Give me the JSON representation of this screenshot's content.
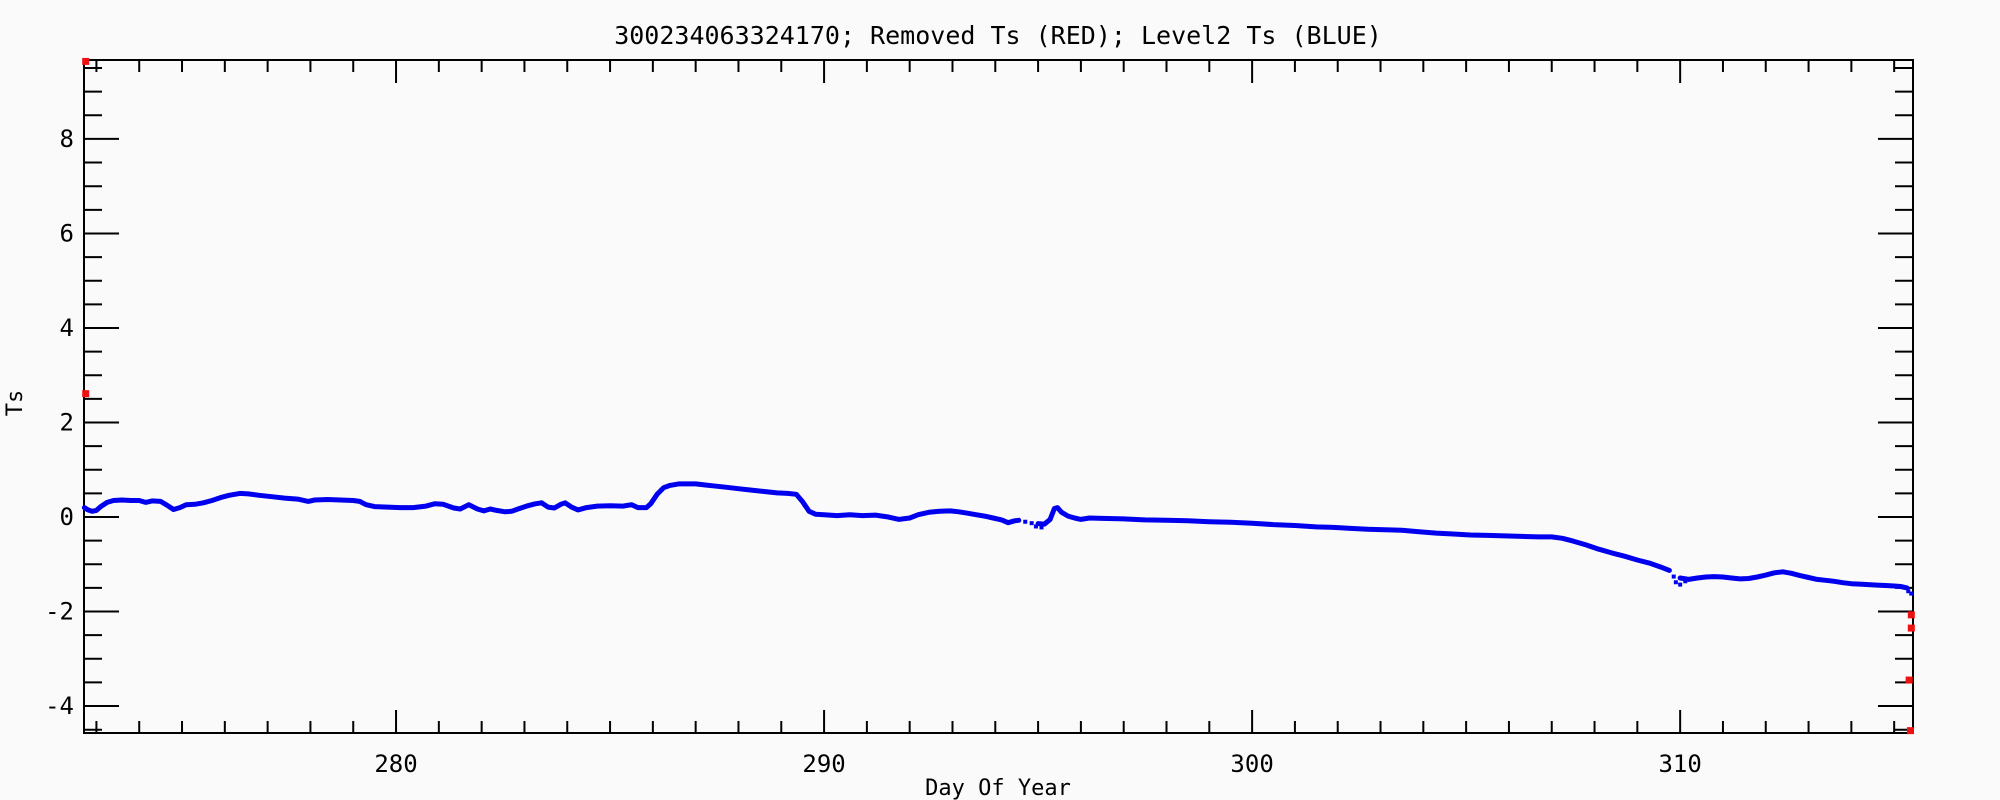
{
  "window": {
    "background": "#fafafa"
  },
  "chart_data": {
    "type": "scatter",
    "title": "300234063324170; Removed Ts (RED); Level2 Ts (BLUE)",
    "xlabel": "Day Of Year",
    "ylabel": "Ts",
    "xlim": [
      272.71,
      315.44
    ],
    "ylim": [
      -4.57,
      9.67
    ],
    "grid": false,
    "legend": "encoded-in-title",
    "axis_color": "#000000",
    "x_major_ticks": [
      280,
      290,
      300,
      310
    ],
    "x_tick_labels": [
      "280",
      "290",
      "300",
      "310"
    ],
    "x_minor_step": 1,
    "y_major_ticks": [
      -4,
      -2,
      0,
      2,
      4,
      6,
      8
    ],
    "y_tick_labels": [
      "-4",
      "-2",
      "0",
      "2",
      "4",
      "6",
      "8"
    ],
    "y_minor_step": 0.5,
    "series": [
      {
        "name": "Level2 Ts",
        "color": "#0000ee",
        "style": "dense-dot-line",
        "segments": [
          [
            [
              272.72,
              0.2
            ],
            [
              272.8,
              0.15
            ],
            [
              272.9,
              0.12
            ],
            [
              273.0,
              0.14
            ],
            [
              273.1,
              0.22
            ],
            [
              273.25,
              0.31
            ],
            [
              273.4,
              0.35
            ],
            [
              273.6,
              0.36
            ],
            [
              273.8,
              0.35
            ],
            [
              274.0,
              0.35
            ],
            [
              274.15,
              0.31
            ],
            [
              274.3,
              0.34
            ],
            [
              274.5,
              0.33
            ],
            [
              274.65,
              0.25
            ],
            [
              274.8,
              0.16
            ],
            [
              274.95,
              0.2
            ],
            [
              275.1,
              0.26
            ],
            [
              275.3,
              0.27
            ],
            [
              275.5,
              0.3
            ],
            [
              275.7,
              0.35
            ],
            [
              275.9,
              0.41
            ],
            [
              276.1,
              0.46
            ],
            [
              276.35,
              0.5
            ],
            [
              276.55,
              0.49
            ],
            [
              276.8,
              0.46
            ],
            [
              277.1,
              0.43
            ],
            [
              277.4,
              0.4
            ],
            [
              277.7,
              0.38
            ],
            [
              277.95,
              0.33
            ],
            [
              278.1,
              0.36
            ],
            [
              278.4,
              0.37
            ],
            [
              278.7,
              0.36
            ],
            [
              279.0,
              0.35
            ],
            [
              279.15,
              0.33
            ],
            [
              279.3,
              0.26
            ],
            [
              279.5,
              0.22
            ],
            [
              279.8,
              0.21
            ],
            [
              280.1,
              0.2
            ],
            [
              280.4,
              0.2
            ],
            [
              280.7,
              0.23
            ],
            [
              280.9,
              0.28
            ],
            [
              281.1,
              0.27
            ],
            [
              281.35,
              0.19
            ],
            [
              281.5,
              0.17
            ],
            [
              281.7,
              0.26
            ],
            [
              281.9,
              0.17
            ],
            [
              282.05,
              0.13
            ],
            [
              282.2,
              0.17
            ],
            [
              282.35,
              0.14
            ],
            [
              282.55,
              0.11
            ],
            [
              282.7,
              0.12
            ],
            [
              282.85,
              0.17
            ],
            [
              283.05,
              0.23
            ],
            [
              283.25,
              0.28
            ],
            [
              283.4,
              0.3
            ],
            [
              283.55,
              0.21
            ],
            [
              283.7,
              0.19
            ],
            [
              283.85,
              0.27
            ],
            [
              283.95,
              0.3
            ],
            [
              284.1,
              0.21
            ],
            [
              284.25,
              0.15
            ],
            [
              284.45,
              0.2
            ],
            [
              284.7,
              0.23
            ],
            [
              285.0,
              0.24
            ],
            [
              285.3,
              0.23
            ],
            [
              285.5,
              0.26
            ],
            [
              285.65,
              0.2
            ],
            [
              285.85,
              0.2
            ],
            [
              285.95,
              0.28
            ],
            [
              286.1,
              0.48
            ],
            [
              286.25,
              0.62
            ],
            [
              286.4,
              0.67
            ],
            [
              286.6,
              0.7
            ],
            [
              286.8,
              0.7
            ],
            [
              287.0,
              0.7
            ],
            [
              287.2,
              0.68
            ],
            [
              287.4,
              0.66
            ],
            [
              287.7,
              0.63
            ],
            [
              288.0,
              0.6
            ],
            [
              288.3,
              0.57
            ],
            [
              288.6,
              0.54
            ],
            [
              288.9,
              0.51
            ],
            [
              289.15,
              0.5
            ],
            [
              289.35,
              0.48
            ],
            [
              289.5,
              0.32
            ],
            [
              289.65,
              0.12
            ],
            [
              289.8,
              0.06
            ],
            [
              290.0,
              0.05
            ],
            [
              290.3,
              0.03
            ],
            [
              290.6,
              0.05
            ],
            [
              290.9,
              0.03
            ],
            [
              291.2,
              0.04
            ],
            [
              291.5,
              0.0
            ],
            [
              291.75,
              -0.05
            ],
            [
              292.0,
              -0.02
            ],
            [
              292.2,
              0.05
            ],
            [
              292.45,
              0.1
            ],
            [
              292.7,
              0.12
            ],
            [
              292.95,
              0.13
            ],
            [
              293.15,
              0.11
            ],
            [
              293.35,
              0.08
            ],
            [
              293.55,
              0.05
            ],
            [
              293.75,
              0.02
            ],
            [
              293.95,
              -0.02
            ],
            [
              294.15,
              -0.06
            ],
            [
              294.3,
              -0.12
            ],
            [
              294.45,
              -0.08
            ],
            [
              294.55,
              -0.07
            ]
          ],
          [
            [
              295.0,
              -0.14
            ],
            [
              295.15,
              -0.15
            ],
            [
              295.28,
              -0.05
            ],
            [
              295.38,
              0.18
            ],
            [
              295.45,
              0.2
            ],
            [
              295.55,
              0.1
            ],
            [
              295.7,
              0.02
            ],
            [
              295.85,
              -0.02
            ],
            [
              296.0,
              -0.05
            ],
            [
              296.2,
              -0.02
            ],
            [
              296.5,
              -0.03
            ],
            [
              297.0,
              -0.04
            ],
            [
              297.5,
              -0.06
            ],
            [
              298.0,
              -0.07
            ],
            [
              298.5,
              -0.08
            ],
            [
              299.0,
              -0.1
            ],
            [
              299.5,
              -0.11
            ],
            [
              300.0,
              -0.13
            ],
            [
              300.5,
              -0.16
            ],
            [
              301.0,
              -0.18
            ],
            [
              301.5,
              -0.21
            ],
            [
              301.9,
              -0.22
            ],
            [
              302.3,
              -0.24
            ],
            [
              302.7,
              -0.26
            ],
            [
              303.1,
              -0.27
            ],
            [
              303.5,
              -0.28
            ],
            [
              303.9,
              -0.31
            ],
            [
              304.3,
              -0.34
            ],
            [
              304.7,
              -0.36
            ],
            [
              305.1,
              -0.38
            ],
            [
              305.5,
              -0.39
            ],
            [
              305.9,
              -0.4
            ],
            [
              306.3,
              -0.41
            ],
            [
              306.7,
              -0.42
            ],
            [
              307.0,
              -0.42
            ],
            [
              307.25,
              -0.45
            ],
            [
              307.5,
              -0.51
            ],
            [
              307.8,
              -0.59
            ],
            [
              308.1,
              -0.68
            ],
            [
              308.4,
              -0.76
            ],
            [
              308.7,
              -0.83
            ],
            [
              309.0,
              -0.91
            ],
            [
              309.3,
              -0.98
            ],
            [
              309.55,
              -1.06
            ],
            [
              309.75,
              -1.13
            ]
          ],
          [
            [
              310.0,
              -1.29
            ],
            [
              310.2,
              -1.32
            ],
            [
              310.4,
              -1.29
            ],
            [
              310.6,
              -1.27
            ],
            [
              310.8,
              -1.26
            ],
            [
              311.0,
              -1.27
            ],
            [
              311.2,
              -1.29
            ],
            [
              311.4,
              -1.31
            ],
            [
              311.6,
              -1.3
            ],
            [
              311.8,
              -1.27
            ],
            [
              312.0,
              -1.23
            ],
            [
              312.2,
              -1.18
            ],
            [
              312.4,
              -1.16
            ],
            [
              312.6,
              -1.19
            ],
            [
              312.8,
              -1.24
            ],
            [
              313.0,
              -1.28
            ],
            [
              313.2,
              -1.32
            ],
            [
              313.4,
              -1.34
            ],
            [
              313.6,
              -1.36
            ],
            [
              313.8,
              -1.39
            ],
            [
              314.0,
              -1.41
            ],
            [
              314.2,
              -1.42
            ],
            [
              314.4,
              -1.43
            ],
            [
              314.6,
              -1.44
            ],
            [
              314.8,
              -1.45
            ],
            [
              315.0,
              -1.46
            ],
            [
              315.15,
              -1.47
            ],
            [
              315.3,
              -1.5
            ]
          ]
        ],
        "scatter_dots": [
          [
            289.55,
            0.25
          ],
          [
            294.7,
            -0.1
          ],
          [
            294.85,
            -0.13
          ],
          [
            294.95,
            -0.2
          ],
          [
            295.08,
            -0.22
          ],
          [
            309.85,
            -1.26
          ],
          [
            309.9,
            -1.38
          ],
          [
            310.0,
            -1.43
          ],
          [
            310.12,
            -1.36
          ],
          [
            315.33,
            -1.57
          ],
          [
            315.4,
            -1.62
          ]
        ]
      },
      {
        "name": "Removed Ts",
        "color": "#ee1111",
        "style": "markers",
        "points": [
          [
            272.75,
            9.64
          ],
          [
            272.75,
            2.61
          ],
          [
            315.4,
            -2.07
          ],
          [
            315.4,
            -2.35
          ],
          [
            315.35,
            -3.45
          ],
          [
            315.38,
            -4.52
          ]
        ]
      }
    ]
  }
}
